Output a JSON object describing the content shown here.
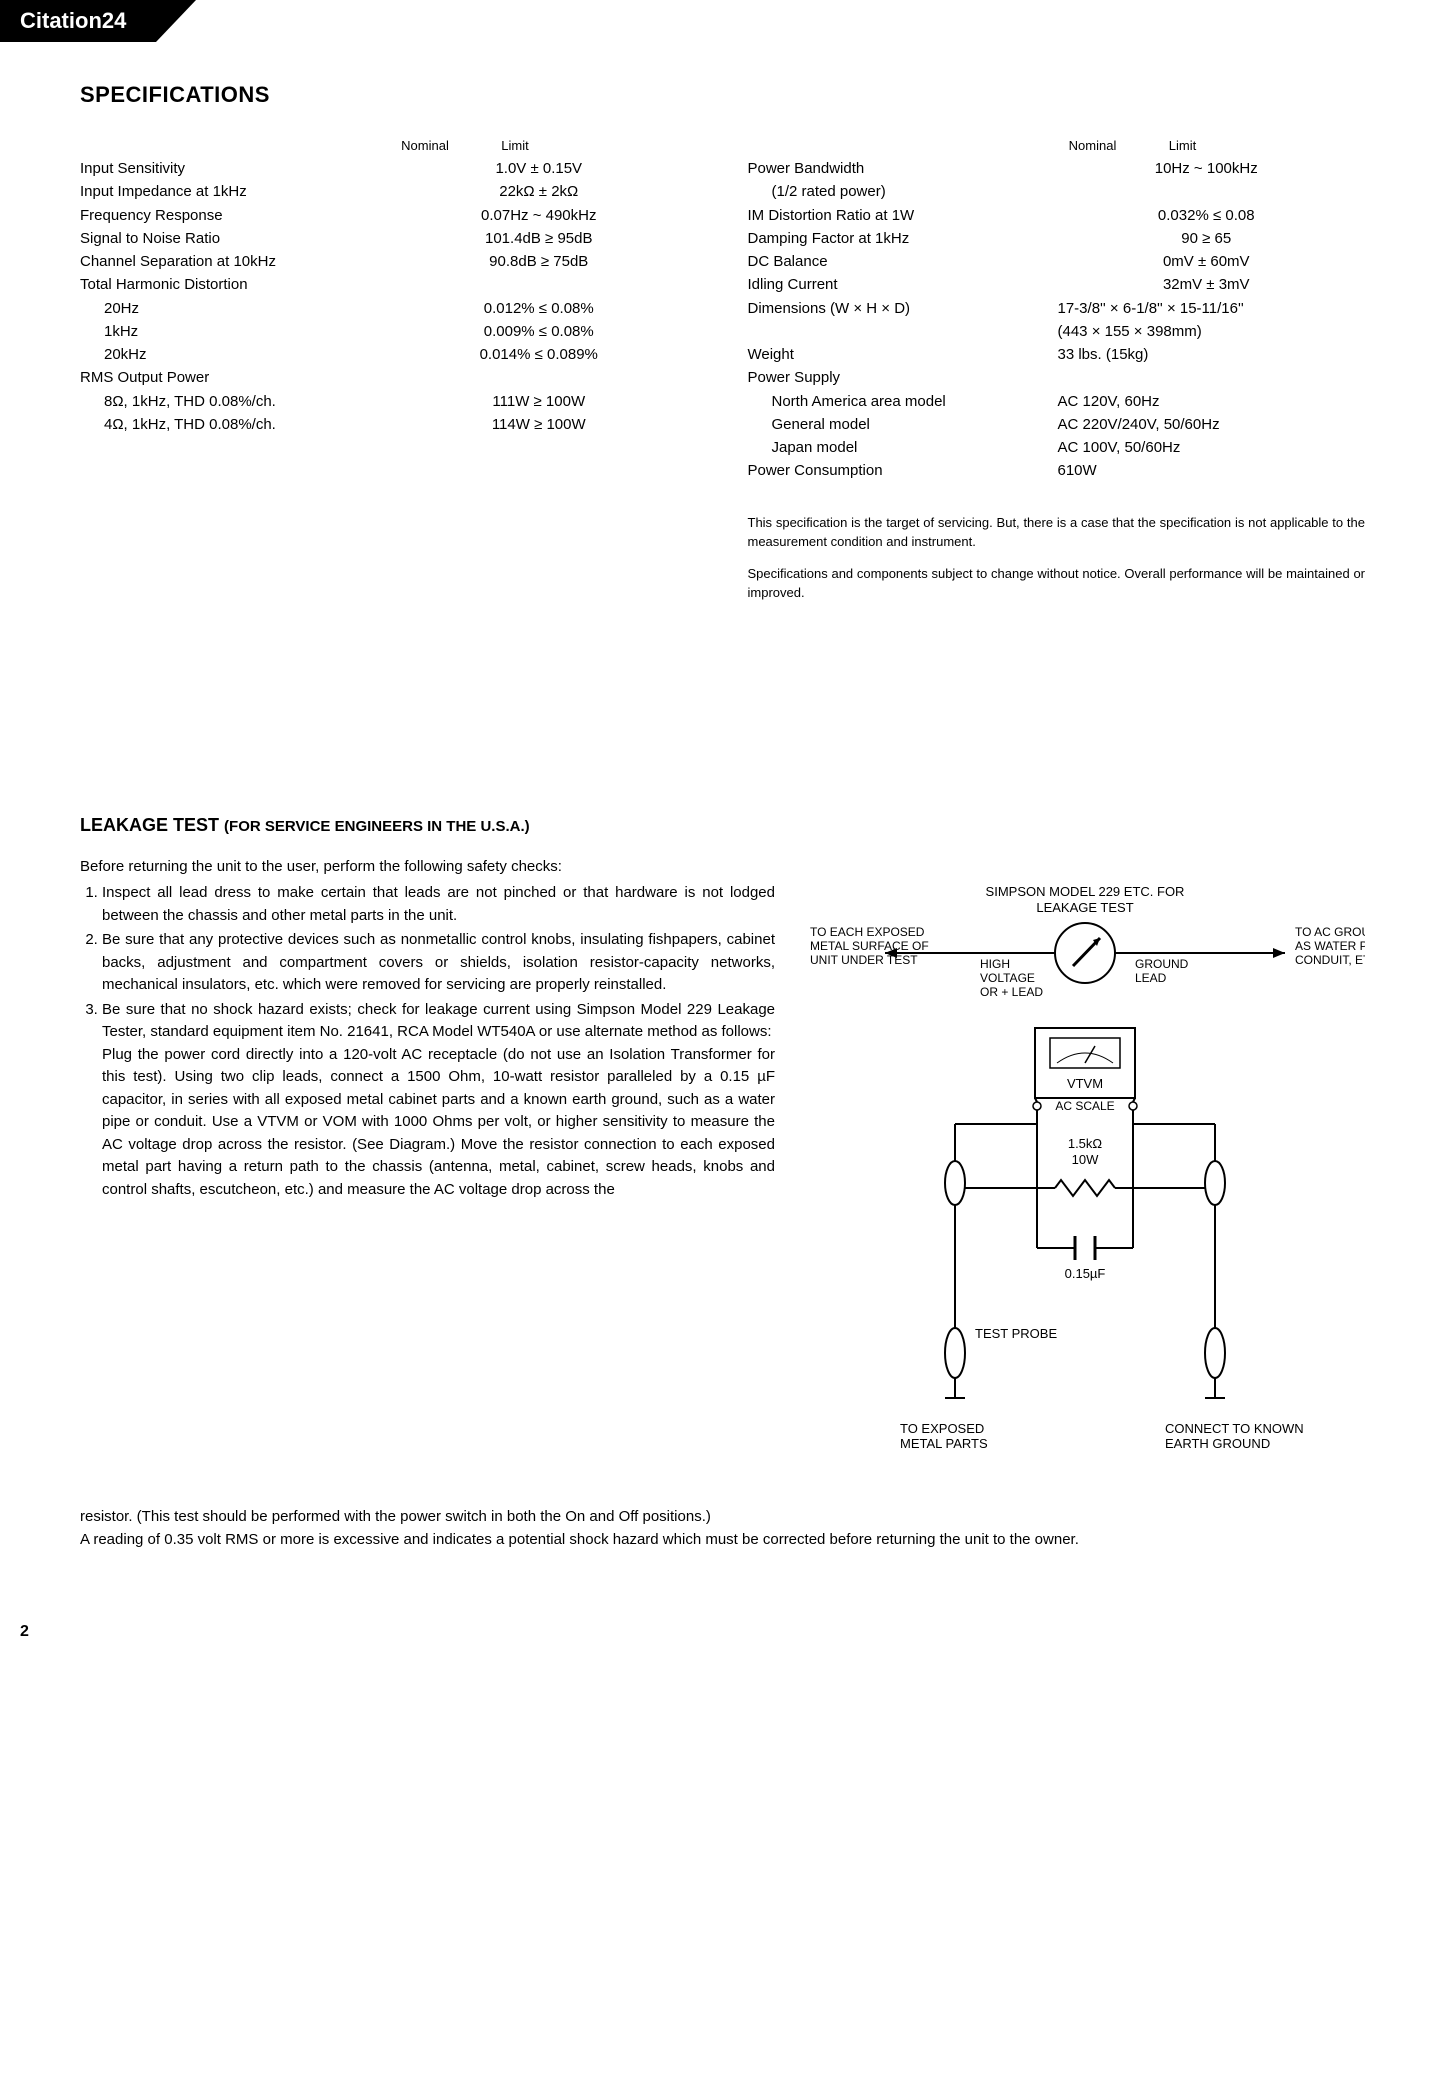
{
  "header": {
    "product": "Citation24"
  },
  "specifications": {
    "title": "SPECIFICATIONS",
    "col_headers": {
      "nominal": "Nominal",
      "limit": "Limit"
    },
    "left": [
      {
        "label": "Input Sensitivity",
        "value": "1.0V ± 0.15V"
      },
      {
        "label": "Input Impedance at 1kHz",
        "value": "22kΩ ±  2kΩ"
      },
      {
        "label": "Frequency Response",
        "value": "0.07Hz ~ 490kHz"
      },
      {
        "label": "Signal to Noise Ratio",
        "value": "101.4dB ≥ 95dB"
      },
      {
        "label": "Channel Separation at 10kHz",
        "value": "90.8dB ≥ 75dB"
      },
      {
        "label": "Total Harmonic Distortion",
        "value": ""
      },
      {
        "label": "20Hz",
        "indent": true,
        "value": "0.012% ≤ 0.08%"
      },
      {
        "label": "1kHz",
        "indent": true,
        "value": "0.009% ≤ 0.08%"
      },
      {
        "label": "20kHz",
        "indent": true,
        "value": "0.014% ≤ 0.089%"
      },
      {
        "label": "RMS Output Power",
        "value": ""
      },
      {
        "label": "8Ω, 1kHz, THD 0.08%/ch.",
        "indent": true,
        "value": "111W ≥ 100W"
      },
      {
        "label": "4Ω, 1kHz, THD 0.08%/ch.",
        "indent": true,
        "value": "114W ≥ 100W"
      }
    ],
    "right": [
      {
        "label": "Power Bandwidth",
        "value": "10Hz ~ 100kHz"
      },
      {
        "label": "(1/2 rated power)",
        "indent": true,
        "value": ""
      },
      {
        "label": "IM Distortion Ratio at 1W",
        "value": "0.032% ≤ 0.08"
      },
      {
        "label": "Damping Factor at 1kHz",
        "value": "90 ≥ 65"
      },
      {
        "label": "DC Balance",
        "value": "0mV ± 60mV"
      },
      {
        "label": "Idling Current",
        "value": "32mV ± 3mV"
      },
      {
        "label": "Dimensions (W × H × D)",
        "value": "17-3/8'' × 6-1/8'' × 15-11/16''",
        "left_align": true
      },
      {
        "label": "",
        "value": "(443 × 155 × 398mm)",
        "left_align": true
      },
      {
        "label": "Weight",
        "value": "33 lbs. (15kg)",
        "left_align": true
      },
      {
        "label": "Power Supply",
        "value": ""
      },
      {
        "label": "North America area model",
        "indent": true,
        "value": "AC 120V, 60Hz",
        "left_align": true
      },
      {
        "label": "General model",
        "indent": true,
        "value": "AC 220V/240V, 50/60Hz",
        "left_align": true
      },
      {
        "label": "Japan model",
        "indent": true,
        "value": "AC 100V, 50/60Hz",
        "left_align": true
      },
      {
        "label": "Power Consumption",
        "value": "610W",
        "left_align": true
      }
    ],
    "notes": [
      "This specification is the target of servicing.\nBut, there is a case that the specification is not applicable to the measurement condition and instrument.",
      "Specifications and components subject to change without notice. Overall performance will be maintained or improved."
    ]
  },
  "leakage": {
    "title_main": "LEAKAGE TEST",
    "title_sub": "(FOR SERVICE ENGINEERS IN THE U.S.A.)",
    "intro": "Before returning the unit to the user, perform the following safety checks:",
    "items": [
      "Inspect all lead dress to make certain that leads are not pinched or that hardware is not lodged between the chassis and other metal parts in the unit.",
      "Be sure that any protective devices such as nonmetallic control knobs, insulating fishpapers, cabinet backs, adjustment and compartment covers or shields, isolation resistor-capacity networks, mechanical insulators, etc. which were removed for servicing are properly reinstalled.",
      "Be sure that no shock hazard exists; check for leakage current using Simpson Model 229 Leakage Tester, standard equipment item No. 21641, RCA Model WT540A or use alternate method as follows:\nPlug the power cord directly into a 120-volt AC receptacle (do not use an Isolation Transformer for this test). Using two clip leads, connect a 1500 Ohm, 10-watt resistor paralleled by a 0.15 µF capacitor, in series with all exposed metal cabinet parts and a known earth ground, such as a water pipe or conduit. Use a VTVM or VOM with 1000 Ohms per volt, or higher sensitivity to measure the AC voltage drop across the resistor. (See Diagram.) Move the resistor connection to each exposed metal part having a return path to the chassis (antenna, metal, cabinet, screw heads, knobs and control shafts, escutcheon, etc.) and measure the AC voltage drop across the"
    ],
    "continuation": "resistor. (This test should be performed with the power switch in both the On and Off positions.)\nA reading of 0.35 volt RMS or more is excessive and indicates a potential shock hazard which must be corrected before returning the unit to the owner.",
    "diagram": {
      "top_label": "SIMPSON MODEL 229 ETC. FOR LEAKAGE TEST",
      "left_label": "TO EACH EXPOSED METAL SURFACE OF UNIT UNDER TEST",
      "right_label": "TO AC GROUND SUCH AS WATER PIPE, BX CABLE CONDUIT, ETC.",
      "hv_label": "HIGH VOLTAGE OR + LEAD",
      "gnd_label": "GROUND LEAD",
      "vtvm": "VTVM",
      "acscale": "AC SCALE",
      "resistor": "1.5kΩ 10W",
      "cap": "0.15µF",
      "probe": "TEST PROBE",
      "bottom_left": "TO EXPOSED METAL PARTS",
      "bottom_right": "CONNECT TO KNOWN EARTH GROUND"
    }
  },
  "page_number": "2"
}
